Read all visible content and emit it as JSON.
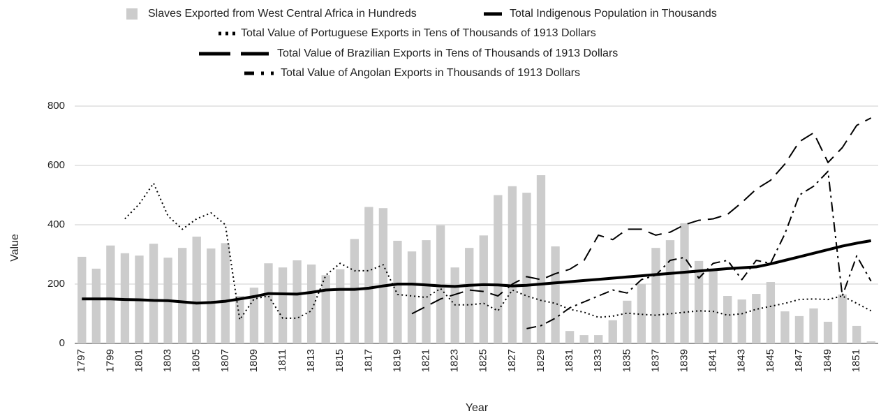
{
  "chart_data": {
    "type": "combo",
    "x_label": "Year",
    "y_label": "Value",
    "categories": [
      1797,
      null,
      1799,
      null,
      1801,
      null,
      1803,
      null,
      1805,
      null,
      1807,
      null,
      1809,
      null,
      1811,
      null,
      1813,
      null,
      1815,
      null,
      1817,
      null,
      1819,
      null,
      1821,
      null,
      1823,
      null,
      1825,
      null,
      1827,
      null,
      1829,
      null,
      1831,
      null,
      1833,
      null,
      1835,
      null,
      1837,
      null,
      1839,
      null,
      1841,
      null,
      1843,
      null,
      1845,
      null,
      1847,
      null,
      1849,
      null,
      1851,
      null
    ],
    "ylim": [
      0,
      800
    ],
    "yticks": [
      0,
      200,
      400,
      600,
      800
    ],
    "grid": true,
    "series": [
      {
        "name": "Slaves Exported from West Central Africa in Hundreds",
        "type": "bar",
        "color": "#cccccc",
        "values": [
          292,
          252,
          330,
          304,
          296,
          336,
          289,
          322,
          360,
          320,
          338,
          160,
          188,
          270,
          256,
          280,
          266,
          230,
          250,
          352,
          460,
          456,
          346,
          310,
          348,
          398,
          256,
          322,
          364,
          500,
          530,
          508,
          567,
          327,
          42,
          28,
          28,
          78,
          144,
          200,
          322,
          348,
          405,
          278,
          250,
          160,
          148,
          167,
          207,
          108,
          92,
          118,
          73,
          165,
          59,
          7
        ]
      },
      {
        "name": "Total Indigenous Population in Thousands",
        "type": "line",
        "line_style": "solid",
        "color": "#000000",
        "values": [
          150,
          150,
          150,
          148,
          147,
          145,
          144,
          140,
          136,
          138,
          142,
          150,
          158,
          168,
          167,
          166,
          172,
          180,
          182,
          182,
          186,
          194,
          200,
          200,
          197,
          194,
          192,
          196,
          198,
          197,
          194,
          196,
          200,
          204,
          208,
          212,
          216,
          220,
          224,
          228,
          232,
          236,
          240,
          244,
          248,
          252,
          255,
          258,
          268,
          280,
          292,
          304,
          316,
          328,
          338,
          346
        ]
      },
      {
        "name": "Total Value of Portuguese Exports in Tens of Thousands of 1913 Dollars",
        "type": "line",
        "line_style": "dotted",
        "color": "#000000",
        "values": [
          null,
          null,
          null,
          420,
          470,
          540,
          430,
          385,
          420,
          440,
          400,
          80,
          150,
          160,
          85,
          85,
          110,
          230,
          270,
          245,
          245,
          265,
          165,
          160,
          155,
          185,
          130,
          130,
          135,
          110,
          180,
          160,
          145,
          135,
          115,
          105,
          88,
          92,
          102,
          98,
          95,
          100,
          105,
          110,
          108,
          95,
          100,
          115,
          125,
          135,
          148,
          150,
          148,
          160,
          135,
          110
        ]
      },
      {
        "name": "Total Value of Brazilian Exports in Tens of Thousands of 1913 Dollars",
        "type": "line",
        "line_style": "dashed",
        "color": "#000000",
        "values": [
          null,
          null,
          null,
          null,
          null,
          null,
          null,
          null,
          null,
          null,
          null,
          null,
          null,
          null,
          null,
          null,
          null,
          null,
          null,
          null,
          null,
          null,
          null,
          100,
          125,
          150,
          165,
          180,
          175,
          160,
          200,
          225,
          215,
          235,
          250,
          280,
          365,
          350,
          385,
          385,
          365,
          375,
          400,
          415,
          420,
          435,
          475,
          520,
          550,
          605,
          680,
          710,
          610,
          660,
          735,
          760
        ]
      },
      {
        "name": "Total Value of Angolan Exports in Thousands of 1913 Dollars",
        "type": "line",
        "line_style": "dashdot",
        "color": "#000000",
        "values": [
          null,
          null,
          null,
          null,
          null,
          null,
          null,
          null,
          null,
          null,
          null,
          null,
          null,
          null,
          null,
          null,
          null,
          null,
          null,
          null,
          null,
          null,
          null,
          null,
          null,
          null,
          null,
          null,
          null,
          null,
          null,
          50,
          60,
          85,
          120,
          140,
          160,
          180,
          170,
          215,
          230,
          280,
          290,
          220,
          270,
          280,
          215,
          280,
          270,
          370,
          500,
          530,
          580,
          160,
          295,
          210
        ]
      }
    ]
  }
}
